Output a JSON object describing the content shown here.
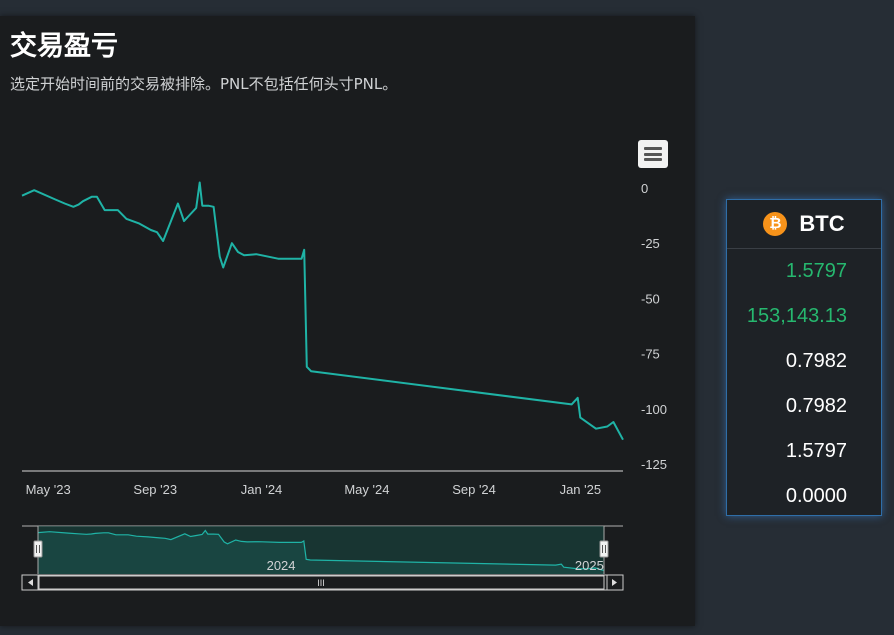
{
  "header": {
    "title": "交易盈亏",
    "subtitle": "选定开始时间前的交易被排除。PNL不包括任何头寸PNL。"
  },
  "chart_data": {
    "type": "line",
    "series": [
      {
        "color": "#1fb3a6",
        "points": [
          [
            "2023-04-01",
            -3.5
          ],
          [
            "2023-04-15",
            -1
          ],
          [
            "2023-05-08",
            -5
          ],
          [
            "2023-05-20",
            -7
          ],
          [
            "2023-05-30",
            -8.5
          ],
          [
            "2023-06-05",
            -7.5
          ],
          [
            "2023-06-10",
            -6
          ],
          [
            "2023-06-20",
            -4
          ],
          [
            "2023-06-26",
            -4
          ],
          [
            "2023-07-05",
            -10
          ],
          [
            "2023-07-20",
            -10
          ],
          [
            "2023-07-30",
            -14
          ],
          [
            "2023-08-13",
            -16
          ],
          [
            "2023-08-27",
            -19
          ],
          [
            "2023-09-03",
            -20
          ],
          [
            "2023-09-10",
            -24
          ],
          [
            "2023-09-27",
            -7
          ],
          [
            "2023-10-04",
            -15
          ],
          [
            "2023-10-11",
            -12
          ],
          [
            "2023-10-18",
            -9
          ],
          [
            "2023-10-22",
            2.5
          ],
          [
            "2023-10-25",
            -8
          ],
          [
            "2023-11-01",
            -8
          ],
          [
            "2023-11-07",
            -8.5
          ],
          [
            "2023-11-14",
            -31
          ],
          [
            "2023-11-18",
            -36
          ],
          [
            "2023-11-28",
            -25
          ],
          [
            "2023-12-05",
            -29
          ],
          [
            "2023-12-12",
            -30.5
          ],
          [
            "2023-12-26",
            -30
          ],
          [
            "2024-01-20",
            -32
          ],
          [
            "2024-02-16",
            -32
          ],
          [
            "2024-02-19",
            -28
          ],
          [
            "2024-02-22",
            -81
          ],
          [
            "2024-02-27",
            -83
          ],
          [
            "2024-12-22",
            -98
          ],
          [
            "2024-12-29",
            -95
          ],
          [
            "2025-01-01",
            -104
          ],
          [
            "2025-01-19",
            -109
          ],
          [
            "2025-02-01",
            -108
          ],
          [
            "2025-02-08",
            -106
          ],
          [
            "2025-02-19",
            -114
          ]
        ]
      }
    ],
    "x_ticks": [
      "May '23",
      "Sep '23",
      "Jan '24",
      "May '24",
      "Sep '24",
      "Jan '25"
    ],
    "y_ticks": [
      "0",
      "-25",
      "-50",
      "-75",
      "-100",
      "-125"
    ],
    "ylim": [
      -125,
      0
    ],
    "navigator_labels": [
      "2024",
      "2025"
    ],
    "scrollbar_grip": "III"
  },
  "sidebar": {
    "asset": "BTC",
    "icon_glyph": "₿",
    "values": [
      {
        "text": "1.5797",
        "color": "green"
      },
      {
        "text": "153,143.13",
        "color": "green"
      },
      {
        "text": "0.7982",
        "color": "white"
      },
      {
        "text": "0.7982",
        "color": "white"
      },
      {
        "text": "1.5797",
        "color": "white"
      },
      {
        "text": "0.0000",
        "color": "white"
      }
    ]
  }
}
